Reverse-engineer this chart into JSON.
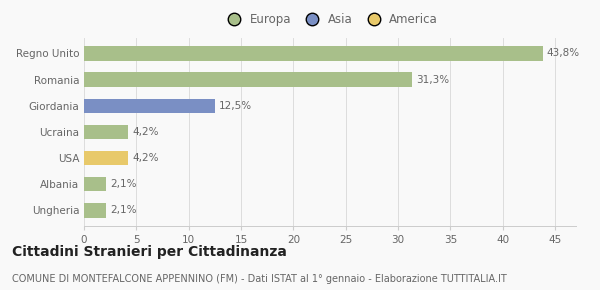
{
  "categories": [
    "Regno Unito",
    "Romania",
    "Giordania",
    "Ucraina",
    "USA",
    "Albania",
    "Ungheria"
  ],
  "values": [
    43.8,
    31.3,
    12.5,
    4.2,
    4.2,
    2.1,
    2.1
  ],
  "labels": [
    "43,8%",
    "31,3%",
    "12,5%",
    "4,2%",
    "4,2%",
    "2,1%",
    "2,1%"
  ],
  "colors": [
    "#a8bf8a",
    "#a8bf8a",
    "#7a8fc4",
    "#a8bf8a",
    "#e8c96a",
    "#a8bf8a",
    "#a8bf8a"
  ],
  "legend_labels": [
    "Europa",
    "Asia",
    "America"
  ],
  "legend_colors": [
    "#a8bf8a",
    "#7a8fc4",
    "#e8c96a"
  ],
  "xlim": [
    0,
    47
  ],
  "xticks": [
    0,
    5,
    10,
    15,
    20,
    25,
    30,
    35,
    40,
    45
  ],
  "title": "Cittadini Stranieri per Cittadinanza",
  "subtitle": "COMUNE DI MONTEFALCONE APPENNINO (FM) - Dati ISTAT al 1° gennaio - Elaborazione TUTTITALIA.IT",
  "background_color": "#f9f9f9",
  "bar_height": 0.55,
  "title_fontsize": 10,
  "subtitle_fontsize": 7,
  "label_fontsize": 7.5,
  "tick_fontsize": 7.5,
  "legend_fontsize": 8.5
}
